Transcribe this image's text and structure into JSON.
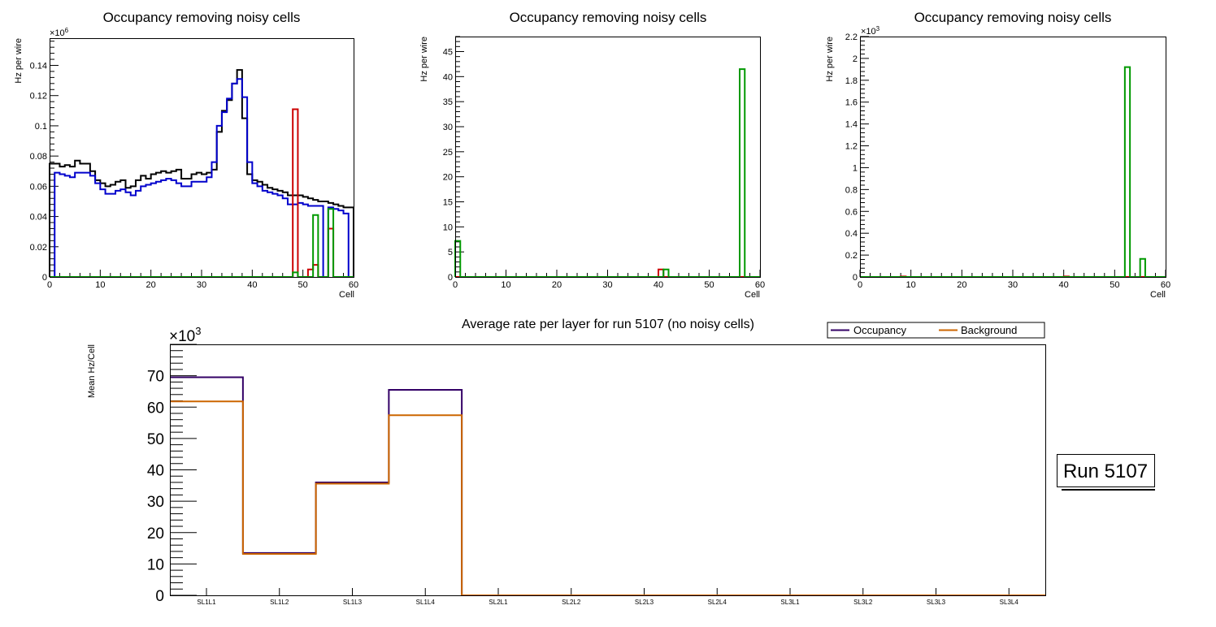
{
  "chart_data": [
    {
      "type": "line",
      "style": "step-histogram",
      "title": "Occupancy removing noisy cells",
      "xlabel": "Cell",
      "ylabel": "Hz per wire",
      "y_multiplier_label": "×10^6",
      "xlim": [
        0,
        60
      ],
      "ylim": [
        0,
        0.158
      ],
      "xticks": [
        "0",
        "10",
        "20",
        "30",
        "40",
        "50",
        "60"
      ],
      "yticks": [
        "0",
        "0.02",
        "0.04",
        "0.06",
        "0.08",
        "0.1",
        "0.12",
        "0.14"
      ],
      "ytick_values": [
        0,
        0.02,
        0.04,
        0.06,
        0.08,
        0.1,
        0.12,
        0.14
      ],
      "bin_edges_start": 0,
      "bin_width": 1,
      "series": [
        {
          "name": "black",
          "color": "#000000",
          "values": [
            0.075,
            0.075,
            0.073,
            0.074,
            0.073,
            0.077,
            0.075,
            0.075,
            0.07,
            0.064,
            0.062,
            0.06,
            0.061,
            0.063,
            0.064,
            0.059,
            0.06,
            0.064,
            0.067,
            0.065,
            0.068,
            0.069,
            0.07,
            0.069,
            0.07,
            0.071,
            0.065,
            0.065,
            0.068,
            0.069,
            0.068,
            0.069,
            0.071,
            0.096,
            0.11,
            0.117,
            0.128,
            0.137,
            0.105,
            0.068,
            0.064,
            0.063,
            0.061,
            0.059,
            0.058,
            0.057,
            0.056,
            0.054,
            0.054,
            0.054,
            0.053,
            0.052,
            0.051,
            0.05,
            0.05,
            0.049,
            0.048,
            0.047,
            0.046,
            0.046
          ]
        },
        {
          "name": "blue",
          "color": "#0000cc",
          "values": [
            0,
            0.069,
            0.068,
            0.067,
            0.066,
            0.069,
            0.069,
            0.069,
            0.067,
            0.062,
            0.058,
            0.055,
            0.055,
            0.057,
            0.058,
            0.056,
            0.054,
            0.057,
            0.06,
            0.061,
            0.062,
            0.063,
            0.064,
            0.065,
            0.064,
            0.062,
            0.06,
            0.06,
            0.063,
            0.063,
            0.063,
            0.066,
            0.076,
            0.1,
            0.109,
            0.118,
            0.128,
            0.131,
            0.119,
            0.076,
            0.062,
            0.06,
            0.057,
            0.056,
            0.055,
            0.054,
            0.052,
            0.048,
            0.048,
            0.049,
            0.048,
            0.047,
            0.047,
            0.047,
            0,
            0.046,
            0.045,
            0.044,
            0.042,
            0
          ]
        },
        {
          "name": "red",
          "color": "#cc0000",
          "values": [
            0,
            0,
            0,
            0,
            0,
            0,
            0,
            0,
            0,
            0,
            0,
            0,
            0,
            0,
            0,
            0,
            0,
            0,
            0,
            0,
            0,
            0,
            0,
            0,
            0,
            0,
            0,
            0,
            0,
            0,
            0,
            0,
            0,
            0,
            0,
            0,
            0,
            0,
            0,
            0,
            0,
            0,
            0,
            0,
            0,
            0,
            0,
            0,
            0.111,
            0,
            0,
            0.005,
            0.008,
            0,
            0,
            0.032,
            0,
            0,
            0,
            0
          ]
        },
        {
          "name": "green",
          "color": "#009900",
          "values": [
            0,
            0,
            0,
            0,
            0,
            0,
            0,
            0,
            0,
            0,
            0,
            0,
            0,
            0,
            0,
            0,
            0,
            0,
            0,
            0,
            0,
            0,
            0,
            0,
            0,
            0,
            0,
            0,
            0,
            0,
            0,
            0,
            0,
            0,
            0,
            0,
            0,
            0,
            0,
            0,
            0,
            0,
            0,
            0,
            0,
            0,
            0,
            0,
            0.003,
            0,
            0,
            0,
            0.041,
            0,
            0,
            0.045,
            0,
            0,
            0,
            0
          ]
        }
      ]
    },
    {
      "type": "line",
      "style": "step-histogram",
      "title": "Occupancy removing noisy cells",
      "xlabel": "Cell",
      "ylabel": "Hz per wire",
      "xlim": [
        0,
        60
      ],
      "ylim": [
        0,
        48
      ],
      "xticks": [
        "0",
        "10",
        "20",
        "30",
        "40",
        "50",
        "60"
      ],
      "yticks": [
        "0",
        "5",
        "10",
        "15",
        "20",
        "25",
        "30",
        "35",
        "40",
        "45"
      ],
      "ytick_values": [
        0,
        5,
        10,
        15,
        20,
        25,
        30,
        35,
        40,
        45
      ],
      "bin_edges_start": 0,
      "bin_width": 1,
      "series": [
        {
          "name": "blue",
          "color": "#0000cc",
          "values": [
            0,
            0,
            0,
            0,
            0,
            0,
            0,
            0,
            0,
            0,
            0,
            0,
            0,
            0,
            0,
            0,
            0,
            0,
            0,
            0,
            0,
            0,
            0,
            0,
            0,
            0,
            0,
            0,
            0,
            0,
            0,
            0,
            0,
            0,
            0,
            0,
            0,
            0,
            0,
            0,
            0,
            0,
            0,
            0,
            0,
            0,
            0,
            0,
            0,
            0,
            0,
            0,
            0,
            0,
            0,
            0,
            0,
            0,
            0,
            0
          ]
        },
        {
          "name": "red",
          "color": "#cc0000",
          "values": [
            0,
            0,
            0,
            0,
            0,
            0,
            0,
            0,
            0,
            0,
            0,
            0,
            0,
            0,
            0,
            0,
            0,
            0,
            0,
            0,
            0,
            0,
            0,
            0,
            0,
            0,
            0,
            0,
            0,
            0,
            0,
            0,
            0,
            0,
            0,
            0,
            0,
            0,
            0,
            0,
            1.5,
            0,
            0,
            0,
            0,
            0,
            0,
            0,
            0,
            0,
            0,
            0,
            0,
            0,
            0,
            0,
            0,
            0,
            0,
            0
          ]
        },
        {
          "name": "green",
          "color": "#009900",
          "values": [
            7.2,
            0,
            0,
            0,
            0,
            0,
            0,
            0,
            0,
            0,
            0,
            0,
            0,
            0,
            0,
            0,
            0,
            0,
            0,
            0,
            0,
            0,
            0,
            0,
            0,
            0,
            0,
            0,
            0,
            0,
            0,
            0,
            0,
            0,
            0,
            0,
            0,
            0,
            0,
            0,
            0,
            1.5,
            0,
            0,
            0,
            0,
            0,
            0,
            0,
            0,
            0,
            0,
            0,
            0,
            0,
            0,
            41.5,
            0,
            0,
            0
          ]
        }
      ]
    },
    {
      "type": "line",
      "style": "step-histogram",
      "title": "Occupancy removing noisy cells",
      "xlabel": "Cell",
      "ylabel": "Hz per wire",
      "y_multiplier_label": "×10^3",
      "xlim": [
        0,
        60
      ],
      "ylim": [
        0,
        2.2
      ],
      "xticks": [
        "0",
        "10",
        "20",
        "30",
        "40",
        "50",
        "60"
      ],
      "yticks": [
        "0",
        "0.2",
        "0.4",
        "0.6",
        "0.8",
        "1",
        "1.2",
        "1.4",
        "1.6",
        "1.8",
        "2",
        "2.2"
      ],
      "ytick_values": [
        0,
        0.2,
        0.4,
        0.6,
        0.8,
        1.0,
        1.2,
        1.4,
        1.6,
        1.8,
        2.0,
        2.2
      ],
      "bin_edges_start": 0,
      "bin_width": 1,
      "series": [
        {
          "name": "blue",
          "color": "#0000cc",
          "values": [
            0,
            0,
            0,
            0,
            0,
            0,
            0,
            0,
            0,
            0,
            0,
            0,
            0,
            0,
            0,
            0,
            0,
            0,
            0,
            0,
            0,
            0,
            0,
            0,
            0,
            0,
            0,
            0,
            0,
            0,
            0,
            0,
            0,
            0,
            0,
            0,
            0,
            0,
            0,
            0,
            0,
            0,
            0,
            0,
            0,
            0,
            0,
            0,
            0,
            0,
            0,
            0,
            0,
            0,
            0,
            0,
            0,
            0,
            0,
            0
          ]
        },
        {
          "name": "red",
          "color": "#cc0000",
          "values": [
            0,
            0,
            0,
            0,
            0,
            0,
            0,
            0,
            0.005,
            0,
            0,
            0,
            0,
            0,
            0,
            0,
            0,
            0,
            0,
            0,
            0,
            0,
            0,
            0,
            0,
            0,
            0,
            0,
            0,
            0,
            0,
            0,
            0,
            0,
            0,
            0,
            0,
            0,
            0,
            0,
            0.005,
            0,
            0,
            0,
            0,
            0,
            0,
            0,
            0,
            0,
            0,
            0,
            0,
            0,
            0,
            0,
            0,
            0,
            0,
            0
          ]
        },
        {
          "name": "green",
          "color": "#009900",
          "values": [
            0,
            0,
            0,
            0,
            0,
            0,
            0,
            0,
            0,
            0,
            0,
            0,
            0,
            0,
            0,
            0,
            0,
            0,
            0,
            0,
            0,
            0,
            0,
            0,
            0,
            0,
            0,
            0,
            0,
            0,
            0,
            0,
            0,
            0,
            0,
            0,
            0,
            0,
            0,
            0,
            0,
            0,
            0,
            0,
            0,
            0,
            0,
            0,
            0,
            0,
            0,
            0,
            1.92,
            0,
            0,
            0.165,
            0,
            0,
            0,
            0
          ]
        }
      ]
    },
    {
      "type": "line",
      "style": "step-histogram",
      "title": "Average rate per layer for run 5107 (no noisy cells)",
      "xlabel": "",
      "ylabel": "Mean Hz/Cell",
      "y_multiplier_label": "×10^3",
      "categories": [
        "SL1L1",
        "SL1L2",
        "SL1L3",
        "SL1L4",
        "SL2L1",
        "SL2L2",
        "SL2L3",
        "SL2L4",
        "SL3L1",
        "SL3L2",
        "SL3L3",
        "SL3L4"
      ],
      "ylim": [
        0,
        80
      ],
      "yticks": [
        "0",
        "10",
        "20",
        "30",
        "40",
        "50",
        "60",
        "70"
      ],
      "ytick_values": [
        0,
        10,
        20,
        30,
        40,
        50,
        60,
        70
      ],
      "legend": {
        "placement": "top-right",
        "entries": [
          "Occupancy",
          "Background"
        ]
      },
      "series": [
        {
          "name": "Occupancy",
          "color": "#330066",
          "values": [
            69.5,
            13.5,
            36.0,
            65.5,
            0,
            0,
            0,
            0,
            0,
            0,
            0,
            0
          ]
        },
        {
          "name": "Background",
          "color": "#cc6600",
          "values": [
            61.8,
            13.2,
            35.6,
            57.4,
            0,
            0,
            0,
            0,
            0,
            0,
            0,
            0
          ]
        }
      ]
    }
  ],
  "run_label": "Run 5107"
}
